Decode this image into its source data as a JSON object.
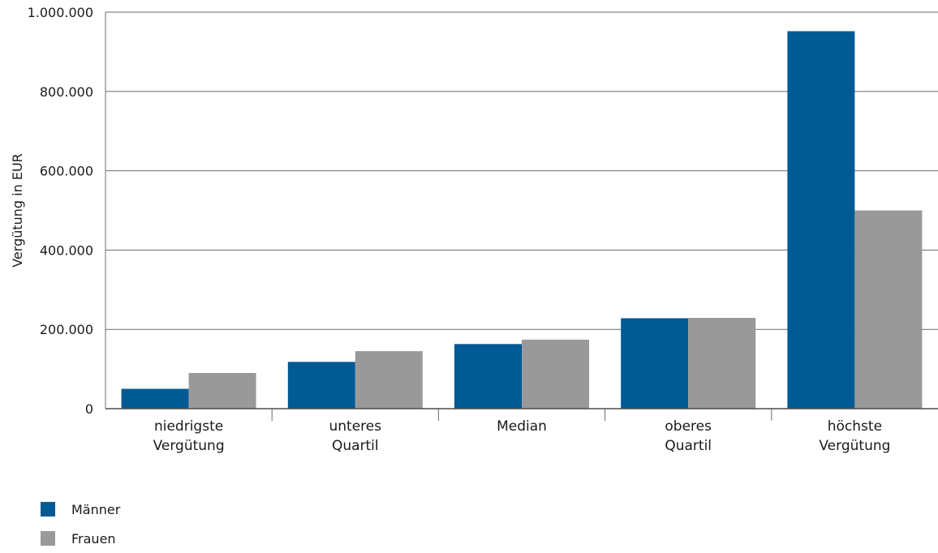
{
  "chart_data": {
    "type": "bar",
    "ylabel": "Vergütung in EUR",
    "ylim": [
      0,
      1000000
    ],
    "yticks": [
      0,
      200000,
      400000,
      600000,
      800000,
      1000000
    ],
    "ytick_labels": [
      "0",
      "200.000",
      "400.000",
      "600.000",
      "800.000",
      "1.000.000"
    ],
    "grid": true,
    "legend_placement": "bottom-left",
    "categories": [
      [
        "niedrigste",
        "Vergütung"
      ],
      [
        "unteres",
        "Quartil"
      ],
      [
        "Median"
      ],
      [
        "oberes",
        "Quartil"
      ],
      [
        "höchste",
        "Vergütung"
      ]
    ],
    "series": [
      {
        "name": "Männer",
        "color": "#005a94",
        "values": [
          50000,
          118000,
          163000,
          228000,
          952000
        ]
      },
      {
        "name": "Frauen",
        "color": "#999999",
        "values": [
          90000,
          145000,
          174000,
          229000,
          500000
        ]
      }
    ]
  }
}
